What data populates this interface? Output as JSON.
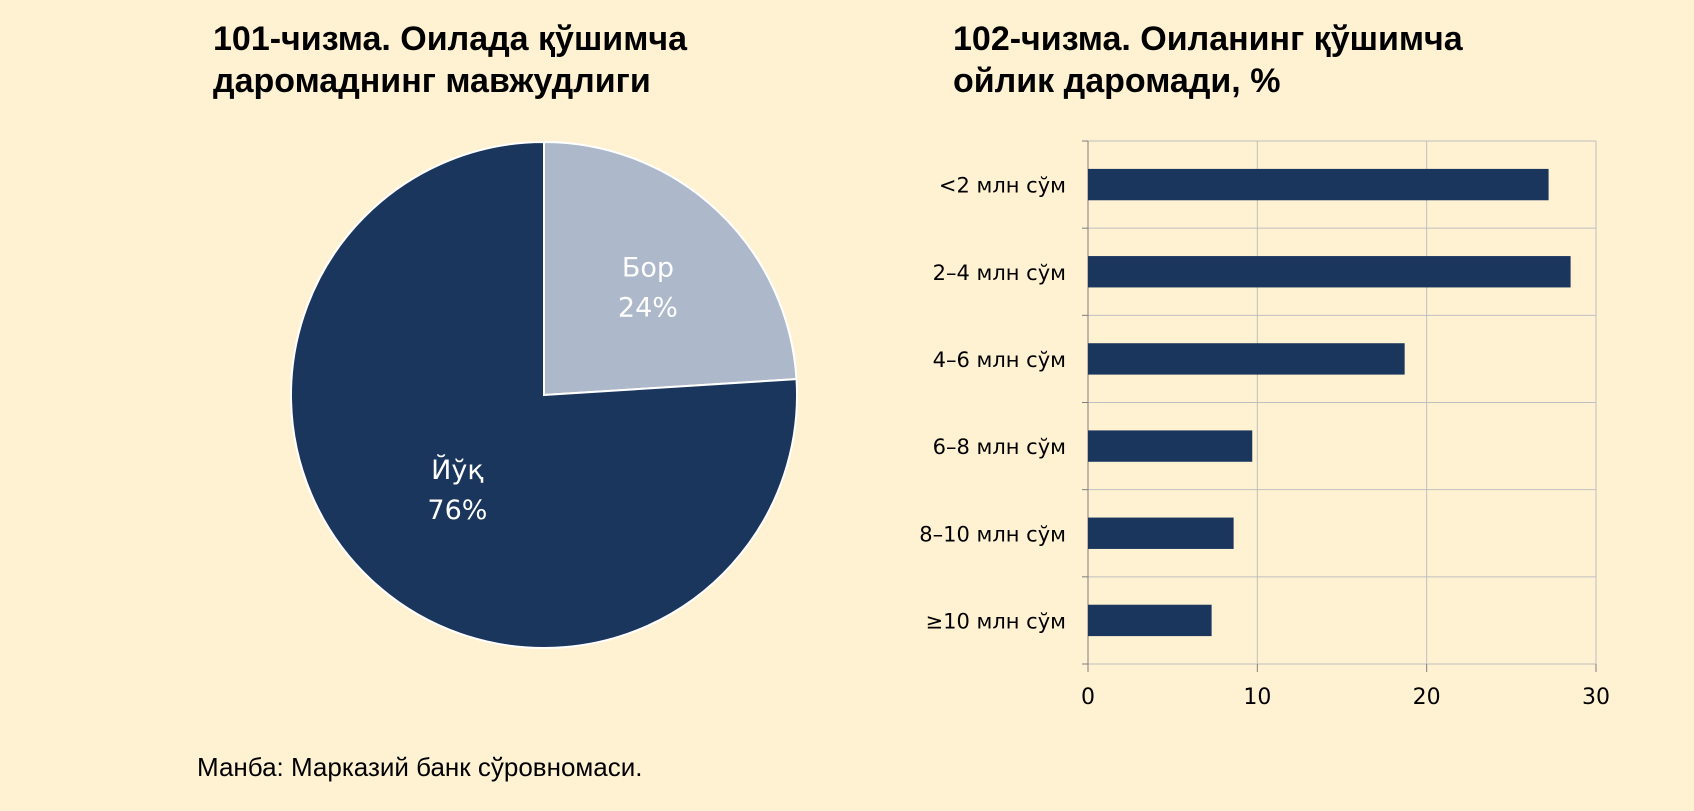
{
  "pie_title": "101-чизма. Оилада қўшимча даромаднинг мавжудлиги",
  "bar_title": "102-чизма. Оиланинг қўшимча ойлик даромади, %",
  "source": "Манба: Марказий банк сўровномаси.",
  "colors": {
    "dark": "#1b365d",
    "light": "#adb9ca",
    "grid": "#bfbfbf",
    "background": "#fff2d3"
  },
  "chart_data": [
    {
      "type": "pie",
      "title": "101-чизма. Оилада қўшимча даромаднинг мавжудлиги",
      "slices": [
        {
          "label": "Бор",
          "value": 24,
          "display": "24%",
          "color": "#adb9ca",
          "text_color": "#ffffff"
        },
        {
          "label": "Йўқ",
          "value": 76,
          "display": "76%",
          "color": "#1b365d",
          "text_color": "#ffffff"
        }
      ]
    },
    {
      "type": "bar",
      "orientation": "horizontal",
      "title": "102-чизма. Оиланинг қўшимча ойлик даромади, %",
      "categories": [
        "<2 млн сўм",
        "2–4 млн сўм",
        "4–6 млн сўм",
        "6–8 млн сўм",
        "8–10 млн сўм",
        "≥10 млн сўм"
      ],
      "values": [
        27.2,
        28.5,
        18.7,
        9.7,
        8.6,
        7.3
      ],
      "xlim": [
        0,
        30
      ],
      "xticks": [
        "0",
        "10",
        "20",
        "30"
      ],
      "grid": true,
      "color": "#1b365d"
    }
  ]
}
